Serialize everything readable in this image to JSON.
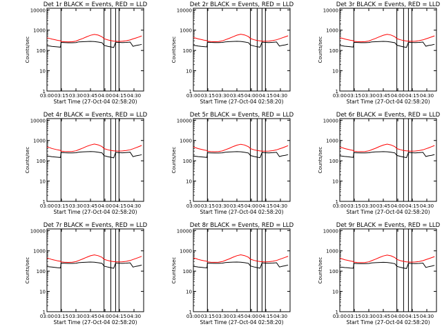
{
  "shared": {
    "xlabel": "Start Time (27-Oct-04 02:58:20)",
    "ylabel": "Counts/sec",
    "x_tick_labels": [
      "03:00",
      "03:15",
      "03:30",
      "03:45",
      "04:00",
      "04:15",
      "04:30"
    ],
    "x_tick_minutes": [
      0,
      15,
      30,
      45,
      60,
      75,
      90
    ],
    "x_range_minutes": [
      0,
      100
    ],
    "y_tick_labels": [
      "1",
      "10",
      "100",
      "1000",
      "10000"
    ],
    "y_tick_values": [
      1,
      10,
      100,
      1000,
      10000
    ],
    "y_range": [
      1,
      12000
    ],
    "y_scale": "log",
    "vertical_markers_minutes": [
      14.5,
      59,
      66,
      71,
      74.5
    ],
    "colors": {
      "events": "#000000",
      "lld": "#ff0000",
      "axes": "#000000"
    }
  },
  "chart_data": [
    {
      "type": "line",
      "title": "Det 1r BLACK = Events, RED = LLD",
      "x_minutes": [
        0,
        3,
        5,
        8,
        11,
        14,
        14.6,
        18,
        22,
        26,
        30,
        33,
        37,
        41,
        45,
        49,
        53,
        57,
        59,
        63,
        66,
        69,
        71,
        73,
        74.5,
        78,
        82,
        86,
        89,
        92,
        95,
        98
      ],
      "series": [
        {
          "name": "Events",
          "values": [
            170,
            165,
            160,
            155,
            150,
            145,
            250,
            245,
            240,
            240,
            245,
            265,
            270,
            275,
            280,
            275,
            260,
            240,
            180,
            160,
            150,
            140,
            255,
            250,
            250,
            245,
            250,
            260,
            160,
            175,
            185,
            200
          ]
        },
        {
          "name": "LLD",
          "values": [
            420,
            390,
            365,
            340,
            315,
            300,
            280,
            270,
            265,
            270,
            290,
            330,
            390,
            470,
            560,
            620,
            570,
            470,
            380,
            330,
            305,
            290,
            285,
            280,
            280,
            285,
            300,
            330,
            370,
            410,
            460,
            520
          ]
        }
      ]
    },
    {
      "type": "line",
      "title": "Det 2r BLACK = Events, RED = LLD",
      "x_minutes": [
        0,
        3,
        5,
        8,
        11,
        14,
        14.6,
        18,
        22,
        26,
        30,
        33,
        37,
        41,
        45,
        49,
        53,
        57,
        59,
        63,
        66,
        69,
        71,
        73,
        74.5,
        78,
        82,
        86,
        89,
        92,
        95,
        98
      ],
      "series": [
        {
          "name": "Events",
          "values": [
            180,
            172,
            166,
            160,
            155,
            150,
            255,
            250,
            245,
            245,
            250,
            265,
            272,
            278,
            282,
            278,
            262,
            242,
            185,
            165,
            152,
            145,
            258,
            252,
            250,
            246,
            252,
            262,
            165,
            178,
            188,
            205
          ]
        },
        {
          "name": "LLD",
          "values": [
            430,
            400,
            372,
            345,
            322,
            305,
            285,
            275,
            270,
            275,
            295,
            335,
            395,
            475,
            565,
            630,
            580,
            480,
            385,
            335,
            310,
            295,
            290,
            285,
            285,
            290,
            305,
            335,
            375,
            420,
            470,
            530
          ]
        }
      ]
    },
    {
      "type": "line",
      "title": "Det 3r BLACK = Events, RED = LLD",
      "x_minutes": [
        0,
        3,
        5,
        8,
        11,
        14,
        14.6,
        18,
        22,
        26,
        30,
        33,
        37,
        41,
        45,
        49,
        53,
        57,
        59,
        63,
        66,
        69,
        71,
        73,
        74.5,
        78,
        82,
        86,
        89,
        92,
        95,
        98
      ],
      "series": [
        {
          "name": "Events",
          "values": [
            175,
            168,
            162,
            157,
            152,
            147,
            252,
            247,
            242,
            242,
            248,
            263,
            270,
            276,
            280,
            276,
            260,
            240,
            182,
            162,
            150,
            142,
            256,
            250,
            248,
            244,
            250,
            260,
            162,
            176,
            186,
            202
          ]
        },
        {
          "name": "LLD",
          "values": [
            425,
            395,
            368,
            342,
            318,
            302,
            282,
            272,
            268,
            272,
            292,
            332,
            392,
            472,
            562,
            625,
            575,
            475,
            382,
            332,
            308,
            292,
            288,
            282,
            282,
            288,
            302,
            332,
            372,
            415,
            465,
            525
          ]
        }
      ]
    },
    {
      "type": "line",
      "title": "Det 4r BLACK = Events, RED = LLD",
      "x_minutes": [
        0,
        3,
        5,
        8,
        11,
        14,
        14.6,
        18,
        22,
        26,
        30,
        33,
        37,
        41,
        45,
        49,
        53,
        57,
        59,
        63,
        66,
        69,
        71,
        73,
        74.5,
        78,
        82,
        86,
        89,
        92,
        95,
        98
      ],
      "series": [
        {
          "name": "Events",
          "values": [
            170,
            165,
            160,
            155,
            150,
            145,
            255,
            250,
            245,
            245,
            250,
            268,
            275,
            280,
            285,
            280,
            265,
            245,
            180,
            160,
            150,
            140,
            260,
            255,
            252,
            248,
            255,
            265,
            160,
            175,
            185,
            200
          ]
        },
        {
          "name": "LLD",
          "values": [
            480,
            440,
            405,
            375,
            345,
            325,
            300,
            290,
            285,
            290,
            310,
            355,
            420,
            510,
            600,
            670,
            610,
            500,
            400,
            350,
            325,
            310,
            305,
            300,
            300,
            305,
            320,
            350,
            390,
            440,
            500,
            570
          ]
        }
      ]
    },
    {
      "type": "line",
      "title": "Det 5r BLACK = Events, RED = LLD",
      "x_minutes": [
        0,
        3,
        5,
        8,
        11,
        14,
        14.6,
        18,
        22,
        26,
        30,
        33,
        37,
        41,
        45,
        49,
        53,
        57,
        59,
        63,
        66,
        69,
        71,
        73,
        74.5,
        78,
        82,
        86,
        89,
        92,
        95,
        98
      ],
      "series": [
        {
          "name": "Events",
          "values": [
            172,
            166,
            161,
            156,
            151,
            146,
            250,
            246,
            242,
            242,
            247,
            265,
            272,
            278,
            282,
            277,
            262,
            242,
            182,
            162,
            151,
            142,
            256,
            251,
            249,
            245,
            251,
            261,
            162,
            176,
            186,
            201
          ]
        },
        {
          "name": "LLD",
          "values": [
            470,
            432,
            398,
            368,
            340,
            320,
            296,
            286,
            281,
            286,
            306,
            350,
            412,
            500,
            590,
            655,
            600,
            492,
            395,
            345,
            320,
            305,
            300,
            295,
            295,
            300,
            315,
            345,
            385,
            432,
            490,
            560
          ]
        }
      ]
    },
    {
      "type": "line",
      "title": "Det 6r BLACK = Events, RED = LLD",
      "x_minutes": [
        0,
        3,
        5,
        8,
        11,
        14,
        14.6,
        18,
        22,
        26,
        30,
        33,
        37,
        41,
        45,
        49,
        53,
        57,
        59,
        63,
        66,
        69,
        71,
        73,
        74.5,
        78,
        82,
        86,
        89,
        92,
        95,
        98
      ],
      "series": [
        {
          "name": "Events",
          "values": [
            175,
            168,
            163,
            158,
            152,
            147,
            252,
            248,
            244,
            244,
            249,
            266,
            273,
            279,
            283,
            279,
            263,
            243,
            183,
            163,
            152,
            143,
            257,
            252,
            250,
            246,
            252,
            262,
            163,
            177,
            187,
            203
          ]
        },
        {
          "name": "LLD",
          "values": [
            475,
            436,
            402,
            372,
            343,
            323,
            298,
            288,
            283,
            288,
            308,
            352,
            416,
            505,
            595,
            662,
            605,
            496,
            398,
            348,
            322,
            307,
            302,
            297,
            297,
            302,
            317,
            347,
            388,
            436,
            495,
            565
          ]
        }
      ]
    },
    {
      "type": "line",
      "title": "Det 7r BLACK = Events, RED = LLD",
      "x_minutes": [
        0,
        3,
        5,
        8,
        11,
        14,
        14.6,
        18,
        22,
        26,
        30,
        33,
        37,
        41,
        45,
        49,
        53,
        57,
        59,
        63,
        66,
        69,
        71,
        73,
        74.5,
        78,
        82,
        86,
        89,
        92,
        95,
        98
      ],
      "series": [
        {
          "name": "Events",
          "values": [
            168,
            162,
            158,
            153,
            148,
            143,
            248,
            244,
            240,
            240,
            245,
            262,
            270,
            276,
            280,
            275,
            260,
            240,
            178,
            158,
            148,
            138,
            252,
            248,
            246,
            242,
            248,
            258,
            158,
            172,
            182,
            198
          ]
        },
        {
          "name": "LLD",
          "values": [
            440,
            405,
            375,
            348,
            322,
            305,
            284,
            274,
            269,
            274,
            294,
            336,
            398,
            480,
            570,
            630,
            578,
            476,
            384,
            334,
            310,
            294,
            289,
            284,
            284,
            289,
            304,
            334,
            375,
            420,
            472,
            535
          ]
        }
      ]
    },
    {
      "type": "line",
      "title": "Det 8r BLACK = Events, RED = LLD",
      "x_minutes": [
        0,
        3,
        5,
        8,
        11,
        14,
        14.6,
        18,
        22,
        26,
        30,
        33,
        37,
        41,
        45,
        49,
        53,
        57,
        59,
        63,
        66,
        69,
        71,
        73,
        74.5,
        78,
        82,
        86,
        89,
        92,
        95,
        98
      ],
      "series": [
        {
          "name": "Events",
          "values": [
            170,
            164,
            159,
            154,
            149,
            144,
            250,
            246,
            242,
            242,
            247,
            264,
            271,
            277,
            281,
            276,
            261,
            241,
            180,
            160,
            149,
            140,
            254,
            249,
            247,
            243,
            249,
            259,
            160,
            174,
            184,
            200
          ]
        },
        {
          "name": "LLD",
          "values": [
            445,
            410,
            378,
            350,
            325,
            308,
            286,
            276,
            271,
            276,
            296,
            338,
            400,
            484,
            574,
            636,
            582,
            480,
            386,
            336,
            312,
            296,
            291,
            286,
            286,
            291,
            306,
            336,
            377,
            424,
            476,
            540
          ]
        }
      ]
    },
    {
      "type": "line",
      "title": "Det 9r BLACK = Events, RED = LLD",
      "x_minutes": [
        0,
        3,
        5,
        8,
        11,
        14,
        14.6,
        18,
        22,
        26,
        30,
        33,
        37,
        41,
        45,
        49,
        53,
        57,
        59,
        63,
        66,
        69,
        71,
        73,
        74.5,
        78,
        82,
        86,
        89,
        92,
        95,
        98
      ],
      "series": [
        {
          "name": "Events",
          "values": [
            160,
            155,
            150,
            146,
            142,
            138,
            240,
            236,
            232,
            232,
            237,
            255,
            262,
            268,
            272,
            267,
            252,
            232,
            172,
            152,
            142,
            134,
            245,
            240,
            238,
            234,
            240,
            250,
            152,
            166,
            176,
            192
          ]
        },
        {
          "name": "LLD",
          "values": [
            430,
            396,
            366,
            340,
            315,
            298,
            278,
            268,
            263,
            268,
            288,
            328,
            388,
            468,
            556,
            616,
            566,
            466,
            376,
            326,
            302,
            288,
            283,
            278,
            278,
            283,
            298,
            328,
            368,
            412,
            462,
            522
          ]
        }
      ]
    }
  ]
}
